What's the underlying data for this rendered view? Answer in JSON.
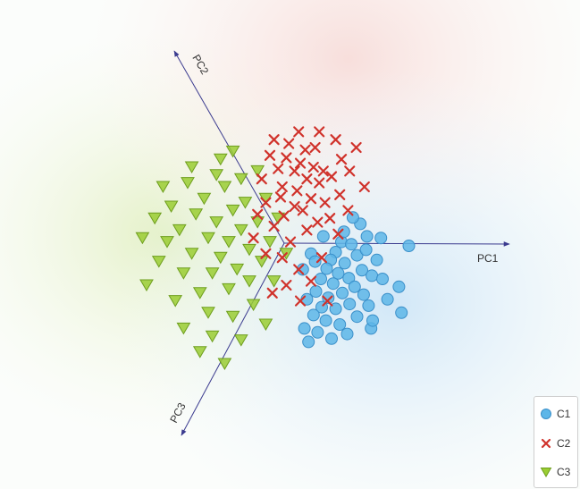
{
  "chart_data": {
    "type": "scatter",
    "title": "",
    "projection": "3D principal component axes (biplot / freeviz style)",
    "axes": [
      {
        "name": "PC1",
        "direction": "right"
      },
      {
        "name": "PC2",
        "direction": "upper-left"
      },
      {
        "name": "PC3",
        "direction": "lower-left"
      }
    ],
    "background": "class probability regions (C1 lower-right, C2 top, C3 left)",
    "grid": false,
    "legend": {
      "placement": "bottom-right",
      "entries": [
        "C1",
        "C2",
        "C3"
      ]
    },
    "series": [
      {
        "name": "C1",
        "marker": "circle",
        "color": "#5DB6E8",
        "stroke": "#3A8FC9",
        "points": [
          [
            0.62,
            0.05
          ],
          [
            0.55,
            -0.08
          ],
          [
            0.74,
            0.02
          ],
          [
            0.81,
            -0.12
          ],
          [
            0.66,
            -0.22
          ],
          [
            0.49,
            -0.18
          ],
          [
            0.92,
            -0.05
          ],
          [
            0.87,
            -0.31
          ],
          [
            0.58,
            -0.35
          ],
          [
            0.71,
            -0.41
          ],
          [
            0.44,
            -0.29
          ],
          [
            1.05,
            -0.18
          ],
          [
            0.99,
            -0.38
          ],
          [
            0.78,
            -0.52
          ],
          [
            0.52,
            -0.48
          ],
          [
            0.37,
            -0.42
          ],
          [
            0.63,
            -0.6
          ],
          [
            0.89,
            -0.62
          ],
          [
            1.12,
            -0.42
          ],
          [
            0.46,
            -0.66
          ],
          [
            0.31,
            -0.58
          ],
          [
            0.72,
            -0.74
          ],
          [
            0.95,
            -0.76
          ],
          [
            0.55,
            -0.8
          ],
          [
            0.38,
            -0.78
          ],
          [
            1.18,
            -0.68
          ],
          [
            0.81,
            -0.9
          ],
          [
            0.6,
            -1.0
          ],
          [
            0.43,
            -0.95
          ],
          [
            0.28,
            -0.88
          ],
          [
            1.35,
            -0.85
          ],
          [
            0.98,
            -1.05
          ],
          [
            0.69,
            -1.12
          ],
          [
            0.5,
            -1.18
          ],
          [
            0.33,
            -1.1
          ],
          [
            0.22,
            -1.22
          ],
          [
            1.32,
            -0.52
          ],
          [
            1.44,
            0.0
          ],
          [
            0.15,
            -0.3
          ],
          [
            0.25,
            -0.1
          ],
          [
            0.85,
            0.28
          ],
          [
            0.76,
            0.36
          ],
          [
            0.65,
            0.18
          ],
          [
            0.93,
            0.12
          ],
          [
            1.1,
            0.1
          ],
          [
            0.4,
            0.12
          ],
          [
            0.3,
            -0.2
          ],
          [
            0.2,
            -0.68
          ],
          [
            1.0,
            -0.95
          ],
          [
            0.17,
            -1.05
          ]
        ]
      },
      {
        "name": "C2",
        "marker": "x",
        "color": "#D0322B",
        "points": [
          [
            0.05,
            0.95
          ],
          [
            0.12,
            1.05
          ],
          [
            -0.05,
            1.12
          ],
          [
            0.2,
            0.85
          ],
          [
            0.28,
            1.0
          ],
          [
            -0.15,
            0.98
          ],
          [
            0.35,
            0.8
          ],
          [
            0.08,
            0.7
          ],
          [
            -0.1,
            0.75
          ],
          [
            0.4,
            0.95
          ],
          [
            0.5,
            0.88
          ],
          [
            0.18,
            1.22
          ],
          [
            -0.02,
            1.3
          ],
          [
            0.3,
            1.25
          ],
          [
            0.62,
            1.1
          ],
          [
            0.72,
            0.95
          ],
          [
            0.55,
            1.35
          ],
          [
            0.1,
            1.45
          ],
          [
            -0.2,
            1.35
          ],
          [
            0.25,
            0.6
          ],
          [
            0.15,
            0.45
          ],
          [
            0.42,
            0.55
          ],
          [
            0.6,
            0.65
          ],
          [
            0.05,
            0.5
          ],
          [
            -0.08,
            0.38
          ],
          [
            0.33,
            0.3
          ],
          [
            0.48,
            0.35
          ],
          [
            0.2,
            0.2
          ],
          [
            -0.2,
            0.25
          ],
          [
            -0.3,
            0.55
          ],
          [
            -0.35,
            0.85
          ],
          [
            -0.25,
            1.15
          ],
          [
            0.8,
            1.25
          ],
          [
            0.9,
            0.75
          ],
          [
            0.7,
            0.45
          ],
          [
            -0.4,
            0.4
          ],
          [
            0.0,
            0.05
          ],
          [
            -0.1,
            -0.15
          ],
          [
            0.1,
            -0.3
          ],
          [
            -0.05,
            -0.5
          ],
          [
            0.25,
            -0.45
          ],
          [
            -0.3,
            -0.1
          ],
          [
            0.38,
            -0.15
          ],
          [
            0.12,
            -0.7
          ],
          [
            -0.22,
            -0.6
          ],
          [
            0.45,
            -0.7
          ],
          [
            -0.45,
            0.1
          ],
          [
            0.58,
            0.15
          ],
          [
            -0.12,
            0.62
          ],
          [
            0.35,
            1.45
          ]
        ]
      },
      {
        "name": "C3",
        "marker": "triangle-down",
        "color": "#9ACD32",
        "stroke": "#6E9E1E",
        "points": [
          [
            -0.6,
            0.2
          ],
          [
            -0.75,
            0.05
          ],
          [
            -0.5,
            -0.05
          ],
          [
            -0.9,
            0.3
          ],
          [
            -0.7,
            0.45
          ],
          [
            -1.0,
            0.1
          ],
          [
            -0.85,
            -0.15
          ],
          [
            -0.55,
            0.55
          ],
          [
            -1.15,
            0.4
          ],
          [
            -1.2,
            -0.1
          ],
          [
            -0.95,
            -0.35
          ],
          [
            -0.65,
            -0.3
          ],
          [
            -1.35,
            0.2
          ],
          [
            -1.05,
            0.6
          ],
          [
            -0.8,
            0.75
          ],
          [
            -0.4,
            0.3
          ],
          [
            -0.35,
            -0.2
          ],
          [
            -1.3,
            -0.35
          ],
          [
            -1.5,
            0.05
          ],
          [
            -1.1,
            -0.6
          ],
          [
            -0.75,
            -0.55
          ],
          [
            -0.5,
            -0.45
          ],
          [
            -1.45,
            0.5
          ],
          [
            -0.9,
            0.9
          ],
          [
            -0.6,
            0.85
          ],
          [
            -1.25,
            0.8
          ],
          [
            -1.6,
            -0.2
          ],
          [
            -0.3,
            0.6
          ],
          [
            -0.25,
            0.05
          ],
          [
            -1.0,
            -0.85
          ],
          [
            -0.7,
            -0.9
          ],
          [
            -1.4,
            -0.7
          ],
          [
            -0.45,
            -0.75
          ],
          [
            -1.65,
            0.35
          ],
          [
            -0.2,
            -0.45
          ],
          [
            -1.2,
            1.0
          ],
          [
            -0.85,
            1.1
          ],
          [
            -0.4,
            0.95
          ],
          [
            -1.75,
            -0.5
          ],
          [
            -0.95,
            -1.15
          ],
          [
            -0.6,
            -1.2
          ],
          [
            -1.3,
            -1.05
          ],
          [
            -0.3,
            -1.0
          ],
          [
            -1.55,
            0.75
          ],
          [
            -0.15,
            0.35
          ],
          [
            -1.8,
            0.1
          ],
          [
            -0.7,
            1.2
          ],
          [
            -0.05,
            -0.1
          ],
          [
            -1.1,
            -1.35
          ],
          [
            -0.8,
            -1.5
          ]
        ]
      }
    ]
  },
  "legend": {
    "items": [
      {
        "label": "C1",
        "marker": "circle"
      },
      {
        "label": "C2",
        "marker": "x"
      },
      {
        "label": "C3",
        "marker": "triangle-down"
      }
    ]
  },
  "axis_labels": {
    "pc1": "PC1",
    "pc2": "PC2",
    "pc3": "PC3"
  },
  "colors": {
    "c1": "#5DB6E8",
    "c1_stroke": "#3A8FC9",
    "c2": "#D0322B",
    "c3": "#9ACD32",
    "c3_stroke": "#6E9E1E",
    "axis": "#3B3B8F"
  }
}
